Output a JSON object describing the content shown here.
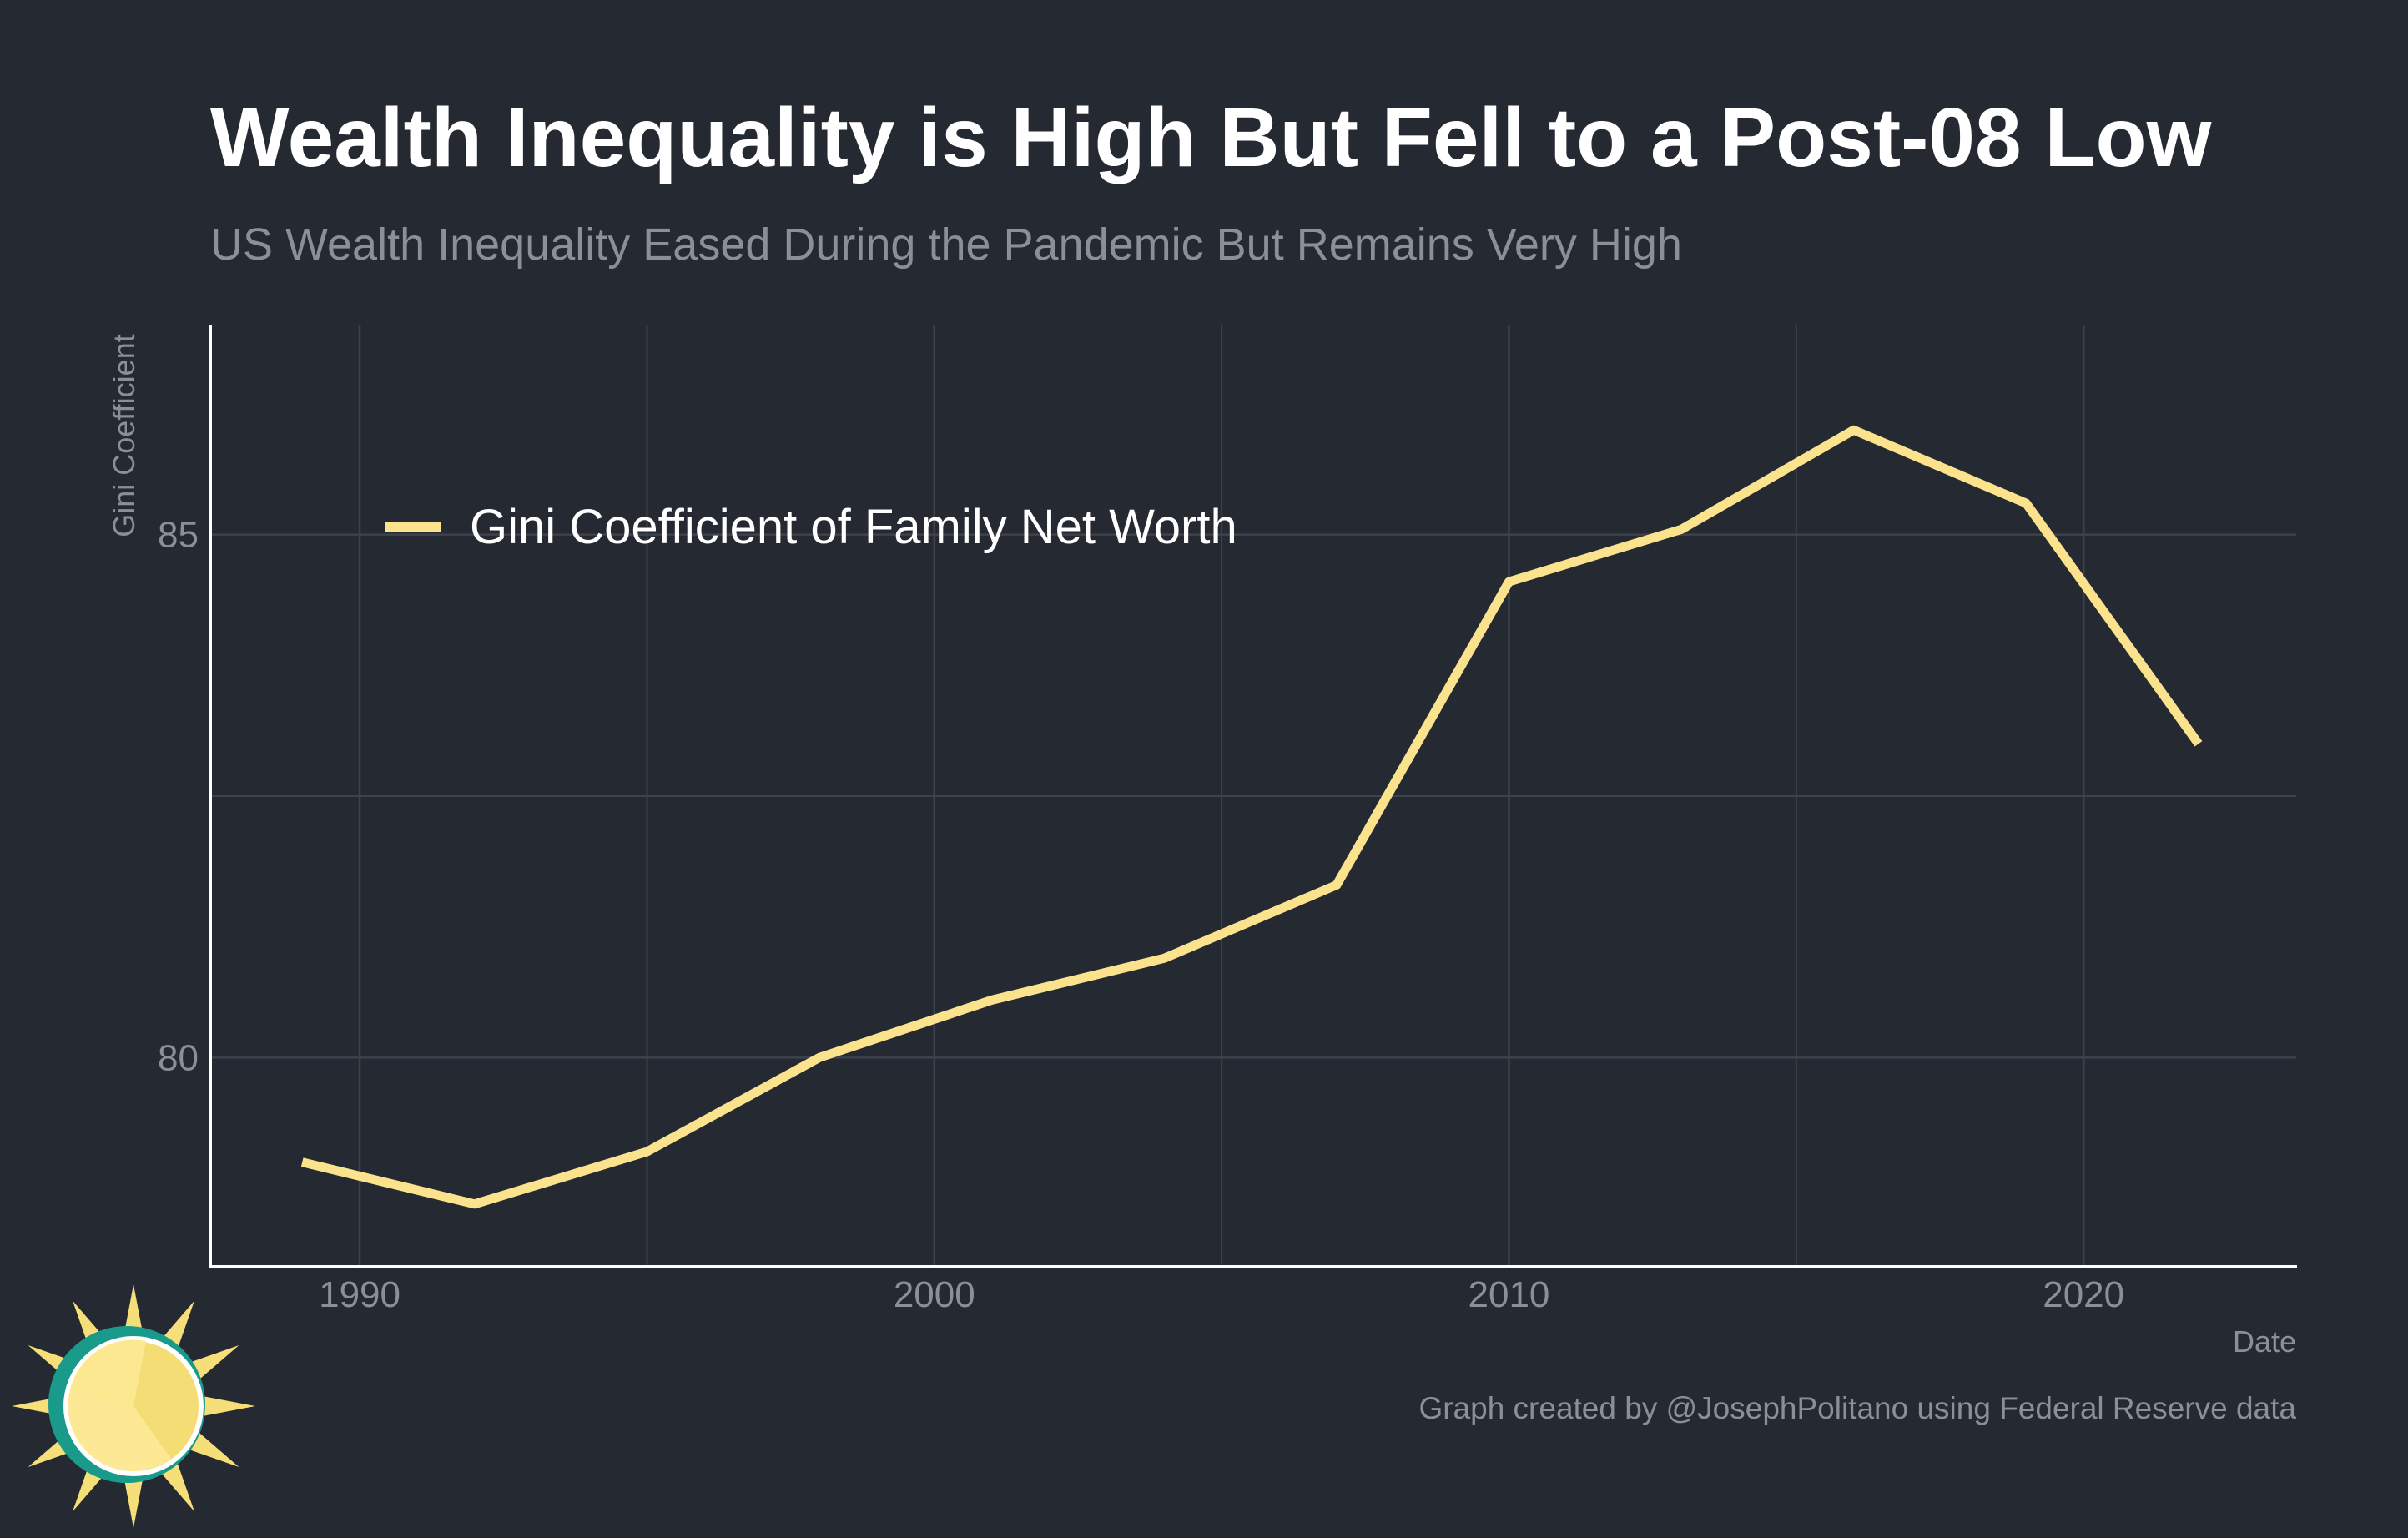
{
  "chart_data": {
    "type": "line",
    "title": "Wealth Inequality is High But Fell to a Post-08 Low",
    "subtitle": "US Wealth Inequality Eased During the Pandemic But Remains Very High",
    "xlabel": "Date",
    "ylabel": "Gini Coefficient",
    "xlim": [
      1987.4,
      2023.7
    ],
    "ylim": [
      78.0,
      87.0
    ],
    "x_ticks": [
      1990,
      2000,
      2010,
      2020
    ],
    "y_ticks": [
      80,
      85
    ],
    "grid": true,
    "legend_position": "top-left",
    "series": [
      {
        "name": "Gini Coefficient of Family Net Worth",
        "color": "#fbe38e",
        "x": [
          1989,
          1992,
          1995,
          1998,
          2001,
          2004,
          2007,
          2010,
          2013,
          2016,
          2019,
          2022
        ],
        "values": [
          79.0,
          78.6,
          79.1,
          80.0,
          80.55,
          80.95,
          81.65,
          84.55,
          85.05,
          86.0,
          85.3,
          83.0
        ]
      }
    ],
    "caption": "Graph created by @JosephPolitano using Federal Reserve data"
  },
  "colors": {
    "background": "#252932",
    "grid": "#3d424b",
    "axis": "#ffffff",
    "muted_text": "#8b8f96",
    "line": "#fbe38e",
    "logo_ring": "#1a9a8a",
    "logo_sun": "#f6df79"
  },
  "logo": {
    "icon": "sun-logo-icon"
  }
}
